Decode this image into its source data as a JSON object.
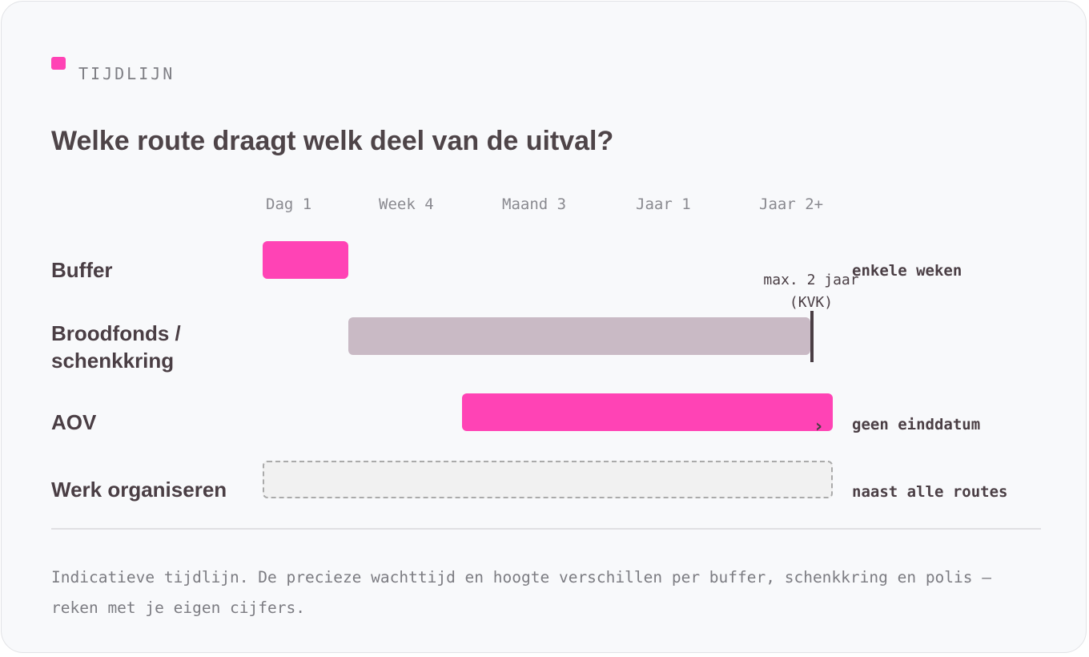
{
  "header": {
    "eyebrow": "TIJDLIJN",
    "title": "Welke route draagt welk deel van de uitval?",
    "accent_color": "#ff43b5"
  },
  "timeline": {
    "ticks": [
      "Dag 1",
      "Week 4",
      "Maand 3",
      "Jaar 1",
      "Jaar 2+"
    ],
    "rows": [
      {
        "label": "Buffer",
        "note": "enkele weken",
        "color": "#ff43b5",
        "style": "solid"
      },
      {
        "label_line1": "Broodfonds /",
        "label_line2": "schenkkring",
        "annotation_line1": "max. 2 jaar",
        "annotation_line2": "(KVK)",
        "color": "#c9bac5",
        "style": "solid"
      },
      {
        "label": "AOV",
        "note": "geen einddatum",
        "continues_icon": "chevron-right-icon",
        "color": "#ff43b5",
        "style": "solid"
      },
      {
        "label": "Werk organiseren",
        "note": "naast alle routes",
        "color": "#f1f1f1",
        "style": "dashed"
      }
    ]
  },
  "footnote": "Indicatieve tijdlijn. De precieze wachttijd en hoogte verschillen per buffer, schenkkring en polis — reken met je eigen cijfers."
}
